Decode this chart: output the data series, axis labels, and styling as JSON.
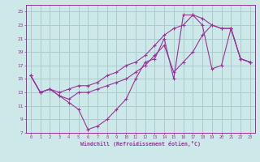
{
  "xlabel": "Windchill (Refroidissement éolien,°C)",
  "xlim": [
    -0.5,
    23.5
  ],
  "ylim": [
    7,
    26
  ],
  "xticks": [
    0,
    1,
    2,
    3,
    4,
    5,
    6,
    7,
    8,
    9,
    10,
    11,
    12,
    13,
    14,
    15,
    16,
    17,
    18,
    19,
    20,
    21,
    22,
    23
  ],
  "yticks": [
    7,
    9,
    11,
    13,
    15,
    17,
    19,
    21,
    23,
    25
  ],
  "background_color": "#cce8e8",
  "grid_color": "#aacccc",
  "line_color": "#993399",
  "series": [
    [
      15.5,
      13.0,
      13.5,
      12.5,
      11.5,
      10.5,
      7.5,
      8.0,
      9.0,
      10.5,
      12.0,
      15.0,
      17.5,
      18.0,
      21.0,
      15.0,
      24.5,
      24.5,
      23.0,
      16.5,
      17.0,
      22.5,
      18.0,
      17.5
    ],
    [
      15.5,
      13.0,
      13.5,
      12.5,
      12.0,
      13.0,
      13.0,
      13.5,
      14.0,
      14.5,
      15.0,
      16.0,
      17.0,
      18.5,
      20.0,
      16.0,
      17.5,
      19.0,
      21.5,
      23.0,
      22.5,
      22.5,
      18.0,
      17.5
    ],
    [
      15.5,
      13.0,
      13.5,
      13.0,
      13.5,
      14.0,
      14.0,
      14.5,
      15.5,
      16.0,
      17.0,
      17.5,
      18.5,
      20.0,
      21.5,
      22.5,
      23.0,
      24.5,
      24.0,
      23.0,
      22.5,
      22.5,
      18.0,
      17.5
    ]
  ]
}
